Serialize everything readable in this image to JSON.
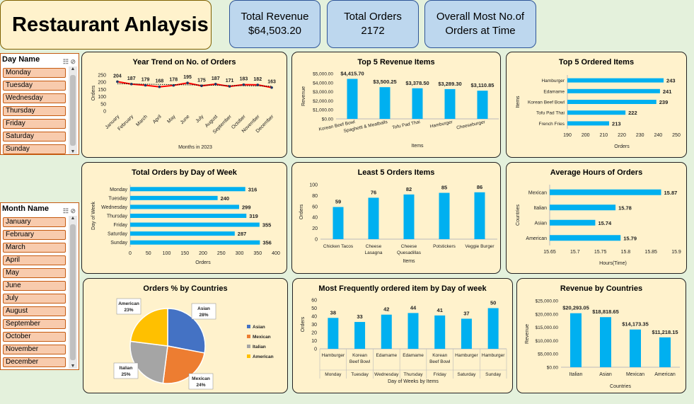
{
  "header": {
    "title": "Restaurant Anlaysis"
  },
  "kpis": [
    {
      "label": "Total Revenue",
      "value": "$64,503.20"
    },
    {
      "label": "Total Orders",
      "value": "2172"
    },
    {
      "label": "Overall Most No.of Orders at Time",
      "value": ""
    }
  ],
  "slicers": {
    "day": {
      "title": "Day Name",
      "items": [
        "Monday",
        "Tuesday",
        "Wednesday",
        "Thursday",
        "Friday",
        "Saturday",
        "Sunday"
      ]
    },
    "month": {
      "title": "Month Name",
      "items": [
        "January",
        "February",
        "March",
        "April",
        "May",
        "June",
        "July",
        "August",
        "September",
        "October",
        "November",
        "December"
      ]
    }
  },
  "colors": {
    "bar": "#00b0f0",
    "line": "#ff0000",
    "panel": "#fff2cc",
    "slicer_item": "#f8cbad",
    "kpi": "#bdd7ee"
  },
  "charts": {
    "year_trend": {
      "title": "Year Trend on No. of Orders",
      "chart_data": {
        "type": "line",
        "categories": [
          "January",
          "February",
          "March",
          "April",
          "May",
          "June",
          "July",
          "August",
          "September",
          "October",
          "November",
          "December"
        ],
        "values": [
          204,
          187,
          179,
          168,
          178,
          195,
          175,
          187,
          171,
          183,
          182,
          163
        ],
        "ylim": [
          0,
          250
        ],
        "yticks": [
          0,
          50,
          100,
          150,
          200,
          250
        ],
        "xlabel": "Months in 2023",
        "ylabel": "Orders",
        "trendline": true
      }
    },
    "top5_revenue": {
      "title": "Top 5 Revenue Items",
      "chart_data": {
        "type": "bar",
        "categories": [
          "Korean Beef Bowl",
          "Spaghetti & Meatballs",
          "Tofu Pad Thai",
          "Hamburger",
          "Cheeseburger"
        ],
        "values": [
          4415.7,
          3500.25,
          3378.5,
          3289.3,
          3110.85
        ],
        "labels": [
          "$4,415.70",
          "$3,500.25",
          "$3,378.50",
          "$3,289.30",
          "$3,110.85"
        ],
        "ylim": [
          0,
          5000
        ],
        "yticks": [
          "$0.00",
          "$1,000.00",
          "$2,000.00",
          "$3,000.00",
          "$4,000.00",
          "$5,000.00"
        ],
        "xlabel": "Items",
        "ylabel": "Revenue"
      }
    },
    "top5_ordered": {
      "title": "Top 5 Ordered Items",
      "chart_data": {
        "type": "bar",
        "orientation": "horizontal",
        "categories": [
          "Hamburger",
          "Edamame",
          "Korean Beef Bowl",
          "Tofu Pad Thai",
          "French Fries"
        ],
        "values": [
          243,
          241,
          239,
          222,
          213
        ],
        "xlim": [
          190,
          250
        ],
        "xticks": [
          190,
          200,
          210,
          220,
          230,
          240,
          250
        ],
        "xlabel": "Orders",
        "ylabel": "Items"
      }
    },
    "orders_by_day": {
      "title": "Total Orders by Day of Week",
      "chart_data": {
        "type": "bar",
        "orientation": "horizontal",
        "categories": [
          "Monday",
          "Tuesday",
          "Wednesday",
          "Thursday",
          "Friday",
          "Saturday",
          "Sunday"
        ],
        "values": [
          316,
          240,
          299,
          319,
          355,
          287,
          356
        ],
        "xlim": [
          0,
          400
        ],
        "xticks": [
          0,
          50,
          100,
          150,
          200,
          250,
          300,
          350,
          400
        ],
        "xlabel": "Orders",
        "ylabel": "Day of Week"
      }
    },
    "least5": {
      "title": "Least 5 Orders Items",
      "chart_data": {
        "type": "bar",
        "categories": [
          [
            "Chicken Tacos"
          ],
          [
            "Cheese",
            "Lasagna"
          ],
          [
            "Cheese",
            "Quesadillas"
          ],
          [
            "Potstickers"
          ],
          [
            "Veggie Burger"
          ]
        ],
        "values": [
          59,
          76,
          82,
          85,
          86
        ],
        "ylim": [
          0,
          100
        ],
        "yticks": [
          0,
          20,
          40,
          60,
          80,
          100
        ],
        "xlabel": "Items",
        "ylabel": "Orders"
      }
    },
    "avg_hours": {
      "title": "Average Hours of Orders",
      "chart_data": {
        "type": "bar",
        "orientation": "horizontal",
        "categories": [
          "Mexican",
          "Italian",
          "Asian",
          "American"
        ],
        "values": [
          15.87,
          15.78,
          15.74,
          15.79
        ],
        "xlim": [
          15.65,
          15.9
        ],
        "xticks": [
          "15.65",
          "15.7",
          "15.75",
          "15.8",
          "15.85",
          "15.9"
        ],
        "xlabel": "Hours(Time)",
        "ylabel": "Countries"
      }
    },
    "pie": {
      "title": "Orders % by Countries",
      "chart_data": {
        "type": "pie",
        "categories": [
          "Asian",
          "Mexican",
          "Italian",
          "American"
        ],
        "values": [
          28,
          24,
          25,
          23
        ],
        "labels": [
          "28%",
          "24%",
          "25%",
          "23%"
        ],
        "colors": [
          "#4472c4",
          "#ed7d31",
          "#a5a5a5",
          "#ffc000"
        ],
        "legend": "right"
      }
    },
    "freq_item": {
      "title": "Most Frequently ordered item by Day of week",
      "chart_data": {
        "type": "bar",
        "items": [
          [
            "Hamburger"
          ],
          [
            "Korean",
            "Beef Bowl"
          ],
          [
            "Edamame"
          ],
          [
            "Edamame"
          ],
          [
            "Korean",
            "Beef Bowl"
          ],
          [
            "Hamburger"
          ],
          [
            "Hamburger"
          ]
        ],
        "days": [
          "Monday",
          "Tuesday",
          "Wednesday",
          "Thursday",
          "Friday",
          "Saturday",
          "Sunday"
        ],
        "values": [
          38,
          33,
          42,
          44,
          41,
          37,
          50
        ],
        "ylim": [
          0,
          60
        ],
        "yticks": [
          0,
          10,
          20,
          30,
          40,
          50,
          60
        ],
        "xlabel": "Day of Weeks by Items",
        "ylabel": "Orders"
      }
    },
    "rev_countries": {
      "title": "Revenue by Countries",
      "chart_data": {
        "type": "bar",
        "categories": [
          "Italian",
          "Asian",
          "Mexican",
          "American"
        ],
        "values": [
          20293.05,
          18818.65,
          14173.35,
          11218.15
        ],
        "labels": [
          "$20,293.05",
          "$18,818.65",
          "$14,173.35",
          "$11,218.15"
        ],
        "ylim": [
          0,
          25000
        ],
        "yticks": [
          "$0.00",
          "$5,000.00",
          "$10,000.00",
          "$15,000.00",
          "$20,000.00",
          "$25,000.00"
        ],
        "xlabel": "Countries",
        "ylabel": "Revenue"
      }
    }
  }
}
